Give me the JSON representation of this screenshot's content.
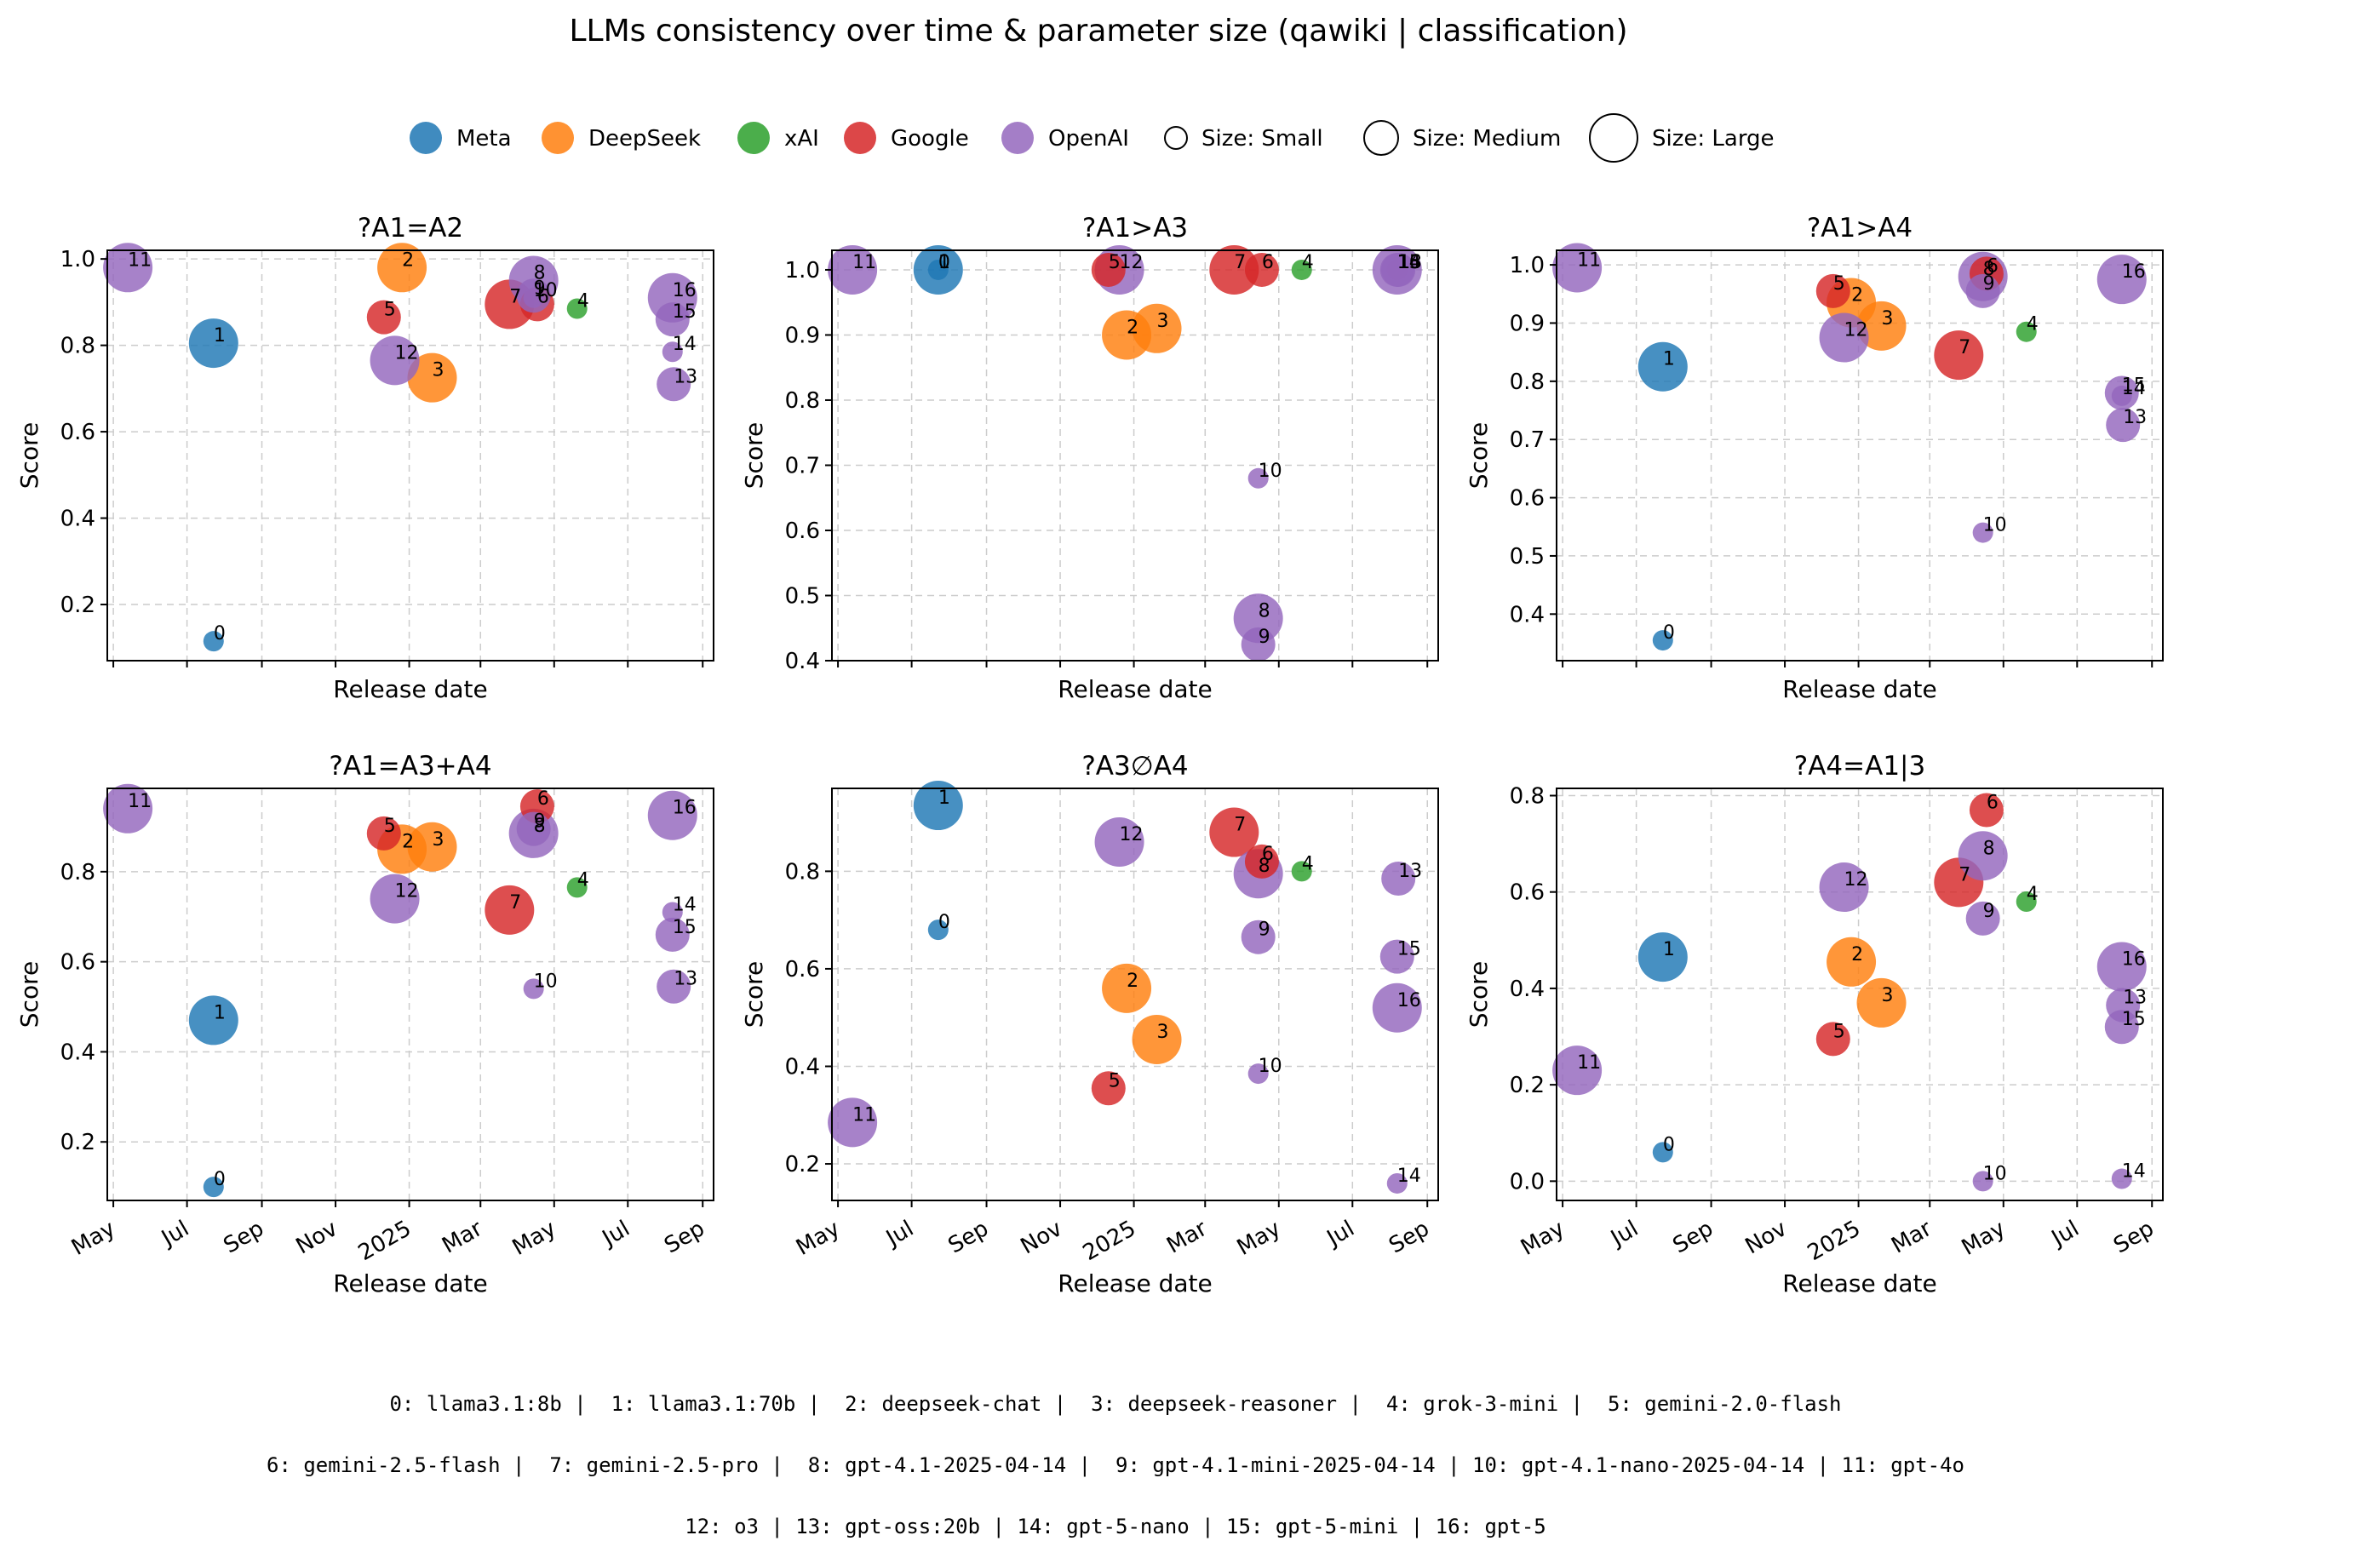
{
  "figure": {
    "title": "LLMs consistency over time & parameter size  (qawiki | classification)"
  },
  "legend": {
    "entries": [
      {
        "label": "Meta",
        "kind": "company",
        "color": "#1f77b4"
      },
      {
        "label": "DeepSeek",
        "kind": "company",
        "color": "#ff7f0e"
      },
      {
        "label": "xAI",
        "kind": "company",
        "color": "#2ca02c"
      },
      {
        "label": "Google",
        "kind": "company",
        "color": "#d62728"
      },
      {
        "label": "OpenAI",
        "kind": "company",
        "color": "#9467bd"
      },
      {
        "label": "Size: Small",
        "kind": "size",
        "size": "small"
      },
      {
        "label": "Size: Medium",
        "kind": "size",
        "size": "medium"
      },
      {
        "label": "Size: Large",
        "kind": "size",
        "size": "large"
      }
    ],
    "placement": "top-center"
  },
  "models": [
    {
      "id": 0,
      "name": "llama3.1:8b",
      "company": "Meta",
      "size": "small",
      "release": "2024-07-23"
    },
    {
      "id": 1,
      "name": "llama3.1:70b",
      "company": "Meta",
      "size": "large",
      "release": "2024-07-23"
    },
    {
      "id": 2,
      "name": "deepseek-chat",
      "company": "DeepSeek",
      "size": "large",
      "release": "2024-12-26"
    },
    {
      "id": 3,
      "name": "deepseek-reasoner",
      "company": "DeepSeek",
      "size": "large",
      "release": "2025-01-20"
    },
    {
      "id": 4,
      "name": "grok-3-mini",
      "company": "xAI",
      "size": "small",
      "release": "2025-05-20"
    },
    {
      "id": 5,
      "name": "gemini-2.0-flash",
      "company": "Google",
      "size": "medium",
      "release": "2024-12-11"
    },
    {
      "id": 6,
      "name": "gemini-2.5-flash",
      "company": "Google",
      "size": "medium",
      "release": "2025-04-17"
    },
    {
      "id": 7,
      "name": "gemini-2.5-pro",
      "company": "Google",
      "size": "large",
      "release": "2025-03-25"
    },
    {
      "id": 8,
      "name": "gpt-4.1-2025-04-14",
      "company": "OpenAI",
      "size": "large",
      "release": "2025-04-14"
    },
    {
      "id": 9,
      "name": "gpt-4.1-mini-2025-04-14",
      "company": "OpenAI",
      "size": "medium",
      "release": "2025-04-14"
    },
    {
      "id": 10,
      "name": "gpt-4.1-nano-2025-04-14",
      "company": "OpenAI",
      "size": "small",
      "release": "2025-04-14"
    },
    {
      "id": 11,
      "name": "gpt-4o",
      "company": "OpenAI",
      "size": "large",
      "release": "2024-05-13"
    },
    {
      "id": 12,
      "name": "o3",
      "company": "OpenAI",
      "size": "large",
      "release": "2024-12-20"
    },
    {
      "id": 13,
      "name": "gpt-oss:20b",
      "company": "OpenAI",
      "size": "medium",
      "release": "2025-08-08"
    },
    {
      "id": 14,
      "name": "gpt-5-nano",
      "company": "OpenAI",
      "size": "small",
      "release": "2025-08-07"
    },
    {
      "id": 15,
      "name": "gpt-5-mini",
      "company": "OpenAI",
      "size": "medium",
      "release": "2025-08-07"
    },
    {
      "id": 16,
      "name": "gpt-5",
      "company": "OpenAI",
      "size": "large",
      "release": "2025-08-07"
    }
  ],
  "footer_lines": [
    "0: llama3.1:8b |  1: llama3.1:70b |  2: deepseek-chat |  3: deepseek-reasoner |  4: grok-3-mini |  5: gemini-2.0-flash",
    "6: gemini-2.5-flash |  7: gemini-2.5-pro |  8: gpt-4.1-2025-04-14 |  9: gpt-4.1-mini-2025-04-14 | 10: gpt-4.1-nano-2025-04-14 | 11: gpt-4o",
    "12: o3 | 13: gpt-oss:20b | 14: gpt-5-nano | 15: gpt-5-mini | 16: gpt-5"
  ],
  "chart_data": [
    {
      "type": "scatter",
      "title": "?A1=A2",
      "xlabel": "Release date",
      "ylabel": "Score",
      "xlim": [
        "2024-04-26",
        "2025-09-10"
      ],
      "ylim": [
        0.07,
        1.02
      ],
      "yticks": [
        0.2,
        0.4,
        0.6,
        0.8,
        1.0
      ],
      "grid": true,
      "scores": [
        0.115,
        0.805,
        0.98,
        0.725,
        0.885,
        0.865,
        0.895,
        0.895,
        0.95,
        0.915,
        0.91,
        0.98,
        0.765,
        0.71,
        0.785,
        0.86,
        0.91
      ]
    },
    {
      "type": "scatter",
      "title": "?A1>A3",
      "xlabel": "Release date",
      "ylabel": "Score",
      "xlim": [
        "2024-04-26",
        "2025-09-10"
      ],
      "ylim": [
        0.4,
        1.03
      ],
      "yticks": [
        0.4,
        0.5,
        0.6,
        0.7,
        0.8,
        0.9,
        1.0
      ],
      "grid": true,
      "scores": [
        1.0,
        1.0,
        0.9,
        0.91,
        1.0,
        1.0,
        1.0,
        1.0,
        0.465,
        0.425,
        0.68,
        1.0,
        1.0,
        1.0,
        1.0,
        1.0,
        1.0
      ]
    },
    {
      "type": "scatter",
      "title": "?A1>A4",
      "xlabel": "Release date",
      "ylabel": "Score",
      "xlim": [
        "2024-04-26",
        "2025-09-10"
      ],
      "ylim": [
        0.32,
        1.025
      ],
      "yticks": [
        0.4,
        0.5,
        0.6,
        0.7,
        0.8,
        0.9,
        1.0
      ],
      "grid": true,
      "scores": [
        0.355,
        0.825,
        0.935,
        0.895,
        0.885,
        0.955,
        0.985,
        0.845,
        0.98,
        0.955,
        0.54,
        0.995,
        0.875,
        0.725,
        0.775,
        0.78,
        0.975
      ]
    },
    {
      "type": "scatter",
      "title": "?A1=A3+A4",
      "xlabel": "Release date",
      "ylabel": "Score",
      "xlim": [
        "2024-04-26",
        "2025-09-10"
      ],
      "ylim": [
        0.07,
        0.985
      ],
      "yticks": [
        0.2,
        0.4,
        0.6,
        0.8
      ],
      "grid": true,
      "scores": [
        0.1,
        0.47,
        0.85,
        0.855,
        0.765,
        0.885,
        0.945,
        0.715,
        0.885,
        0.895,
        0.54,
        0.94,
        0.74,
        0.545,
        0.71,
        0.66,
        0.925
      ]
    },
    {
      "type": "scatter",
      "title": "?A3∅A4",
      "xlabel": "Release date",
      "ylabel": "Score",
      "xlim": [
        "2024-04-26",
        "2025-09-10"
      ],
      "ylim": [
        0.125,
        0.97
      ],
      "yticks": [
        0.2,
        0.4,
        0.6,
        0.8
      ],
      "grid": true,
      "scores": [
        0.68,
        0.935,
        0.56,
        0.455,
        0.8,
        0.355,
        0.82,
        0.88,
        0.795,
        0.665,
        0.385,
        0.285,
        0.86,
        0.785,
        0.16,
        0.625,
        0.52
      ]
    },
    {
      "type": "scatter",
      "title": "?A4=A1|3",
      "xlabel": "Release date",
      "ylabel": "Score",
      "xlim": [
        "2024-04-26",
        "2025-09-10"
      ],
      "ylim": [
        -0.04,
        0.815
      ],
      "yticks": [
        0.0,
        0.2,
        0.4,
        0.6,
        0.8
      ],
      "grid": true,
      "scores": [
        0.06,
        0.465,
        0.455,
        0.37,
        0.58,
        0.295,
        0.77,
        0.62,
        0.675,
        0.545,
        0.0,
        0.23,
        0.61,
        0.365,
        0.005,
        0.32,
        0.445
      ]
    }
  ],
  "xticks": [
    {
      "date": "2024-05-01",
      "label": "May"
    },
    {
      "date": "2024-07-01",
      "label": "Jul"
    },
    {
      "date": "2024-09-01",
      "label": "Sep"
    },
    {
      "date": "2024-11-01",
      "label": "Nov"
    },
    {
      "date": "2025-01-01",
      "label": "2025"
    },
    {
      "date": "2025-03-01",
      "label": "Mar"
    },
    {
      "date": "2025-05-01",
      "label": "May"
    },
    {
      "date": "2025-07-01",
      "label": "Jul"
    },
    {
      "date": "2025-09-01",
      "label": "Sep"
    }
  ]
}
